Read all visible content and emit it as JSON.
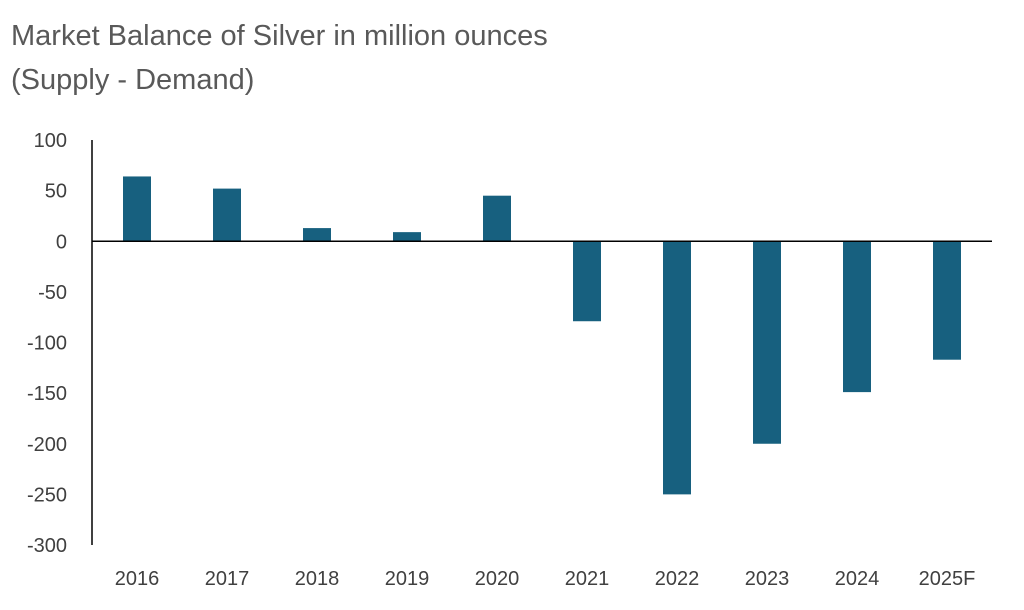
{
  "title_line1": "Market Balance of Silver in million ounces",
  "title_line2": "(Supply - Demand)",
  "chart_data": {
    "type": "bar",
    "title": "Market Balance of Silver in million ounces (Supply - Demand)",
    "categories": [
      "2016",
      "2017",
      "2018",
      "2019",
      "2020",
      "2021",
      "2022",
      "2023",
      "2024",
      "2025F"
    ],
    "values": [
      64,
      52,
      13,
      9,
      45,
      -79,
      -250,
      -200,
      -149,
      -117
    ],
    "ylim": [
      -300,
      100
    ],
    "yticks": [
      100,
      50,
      0,
      -50,
      -100,
      -150,
      -200,
      -250,
      -300
    ],
    "ytick_labels": [
      "100",
      "50",
      "0",
      "-50",
      "-100",
      "-150",
      "-200",
      "-250",
      "-300"
    ],
    "grid": false,
    "legend": "none",
    "bar_color": "#17607f",
    "axis_color": "#000000"
  }
}
